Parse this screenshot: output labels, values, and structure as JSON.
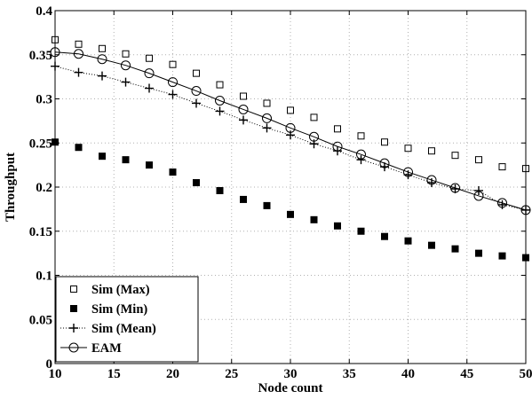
{
  "chart_data": {
    "type": "line",
    "title": "",
    "xlabel": "Node count",
    "ylabel": "Throughput",
    "xlim": [
      10,
      50
    ],
    "ylim": [
      0,
      0.4
    ],
    "xticks": [
      10,
      15,
      20,
      25,
      30,
      35,
      40,
      45,
      50
    ],
    "yticks": [
      0,
      0.05,
      0.1,
      0.15,
      0.2,
      0.25,
      0.3,
      0.35,
      0.4
    ],
    "xtick_labels": [
      "10",
      "15",
      "20",
      "25",
      "30",
      "35",
      "40",
      "45",
      "50"
    ],
    "ytick_labels": [
      "0",
      "0.05",
      "0.1",
      "0.15",
      "0.2",
      "0.25",
      "0.3",
      "0.35",
      "0.4"
    ],
    "grid": true,
    "legend_position": "bottom-left",
    "x": [
      10,
      12,
      14,
      16,
      18,
      20,
      22,
      24,
      26,
      28,
      30,
      32,
      34,
      36,
      38,
      40,
      42,
      44,
      46,
      48,
      50
    ],
    "series": [
      {
        "name": "Sim (Max)",
        "marker": "open-square",
        "line": "none",
        "values": [
          0.367,
          0.362,
          0.357,
          0.351,
          0.346,
          0.339,
          0.329,
          0.316,
          0.303,
          0.295,
          0.287,
          0.279,
          0.266,
          0.258,
          0.251,
          0.244,
          0.241,
          0.236,
          0.231,
          0.223,
          0.221
        ]
      },
      {
        "name": "Sim (Min)",
        "marker": "filled-square",
        "line": "none",
        "values": [
          0.251,
          0.245,
          0.235,
          0.231,
          0.225,
          0.217,
          0.205,
          0.196,
          0.186,
          0.179,
          0.169,
          0.163,
          0.156,
          0.15,
          0.144,
          0.139,
          0.134,
          0.13,
          0.125,
          0.122,
          0.12
        ]
      },
      {
        "name": "Sim (Mean)",
        "marker": "plus",
        "line": "dotted",
        "values": [
          0.337,
          0.33,
          0.326,
          0.319,
          0.312,
          0.305,
          0.295,
          0.286,
          0.276,
          0.267,
          0.259,
          0.249,
          0.241,
          0.231,
          0.223,
          0.214,
          0.205,
          0.198,
          0.196,
          0.18,
          0.174
        ]
      },
      {
        "name": "EAM",
        "marker": "open-circle",
        "line": "solid",
        "values": [
          0.353,
          0.351,
          0.345,
          0.338,
          0.329,
          0.319,
          0.309,
          0.298,
          0.288,
          0.278,
          0.267,
          0.257,
          0.246,
          0.237,
          0.227,
          0.217,
          0.208,
          0.199,
          0.19,
          0.182,
          0.174
        ]
      }
    ]
  }
}
